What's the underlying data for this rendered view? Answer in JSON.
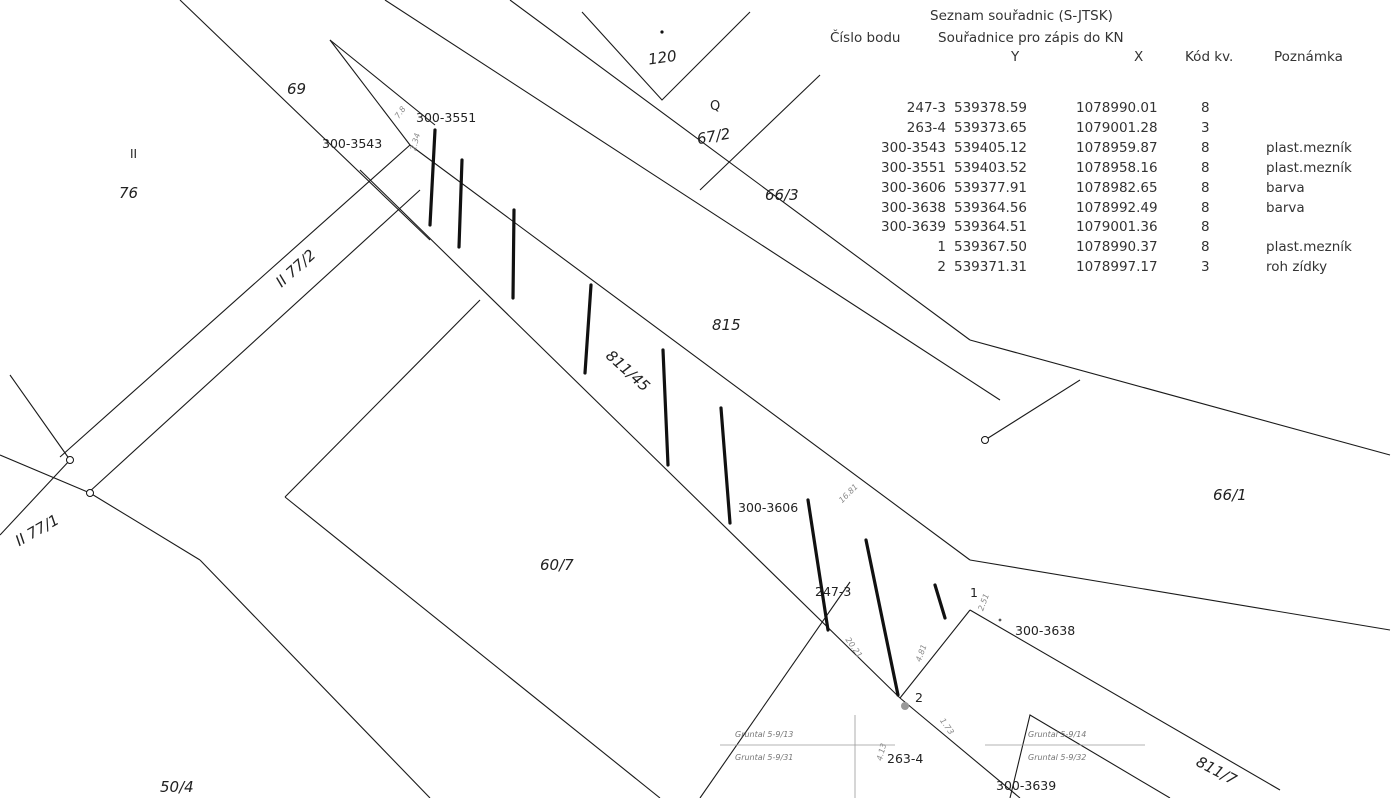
{
  "parcels": {
    "p120": "120",
    "p69": "69",
    "pII": "II",
    "p76": "76",
    "p67_2": "67/2",
    "p66_3": "66/3",
    "p77_2": "II 77/2",
    "p77_1": "II 77/1",
    "p811_45": "811/45",
    "p815": "815",
    "p66_1": "66/1",
    "p60_7": "60/7",
    "p811_7": "811/7",
    "p50_4": "50/4",
    "pQ": "Q"
  },
  "points": {
    "p3543": "300-3543",
    "p3551": "300-3551",
    "p3606": "300-3606",
    "p2473": "247-3",
    "p1": "1",
    "p3638": "300-3638",
    "p2": "2",
    "p2634": "263-4",
    "p3639": "300-3639"
  },
  "dimensions": {
    "d1": "7.8",
    "d2": "2.34",
    "d3": "16.81",
    "d4": "20.21",
    "d5": "4.81",
    "d6": "2.51",
    "d7": "1.73",
    "d8": "4.13"
  },
  "gruntal_labels": [
    "Gruntal 5-9/13",
    "Gruntal 5-9/14",
    "Gruntal 5-9/31",
    "Gruntal 5-9/32"
  ],
  "coord_table": {
    "title": "Seznam souřadnic (S-JTSK)",
    "header_num": "Číslo bodu",
    "header_coords": "Souřadnice pro zápis do KN",
    "header_y": "Y",
    "header_x": "X",
    "header_code": "Kód kv.",
    "header_note": "Poznámka",
    "rows": [
      {
        "num": "247-3",
        "y": "539378.59",
        "x": "1078990.01",
        "code": "8",
        "note": ""
      },
      {
        "num": "263-4",
        "y": "539373.65",
        "x": "1079001.28",
        "code": "3",
        "note": ""
      },
      {
        "num": "300-3543",
        "y": "539405.12",
        "x": "1078959.87",
        "code": "8",
        "note": "plast.mezník"
      },
      {
        "num": "300-3551",
        "y": "539403.52",
        "x": "1078958.16",
        "code": "8",
        "note": "plast.mezník"
      },
      {
        "num": "300-3606",
        "y": "539377.91",
        "x": "1078982.65",
        "code": "8",
        "note": "barva"
      },
      {
        "num": "300-3638",
        "y": "539364.56",
        "x": "1078992.49",
        "code": "8",
        "note": "barva"
      },
      {
        "num": "300-3639",
        "y": "539364.51",
        "x": "1079001.36",
        "code": "8",
        "note": ""
      },
      {
        "num": "1",
        "y": "539367.50",
        "x": "1078990.37",
        "code": "8",
        "note": "plast.mezník"
      },
      {
        "num": "2",
        "y": "539371.31",
        "x": "1078997.17",
        "code": "3",
        "note": "roh zídky"
      }
    ]
  },
  "colors": {
    "line": "#1a1a1a",
    "hatch": "#111111",
    "faint": "#9a9a9a"
  }
}
